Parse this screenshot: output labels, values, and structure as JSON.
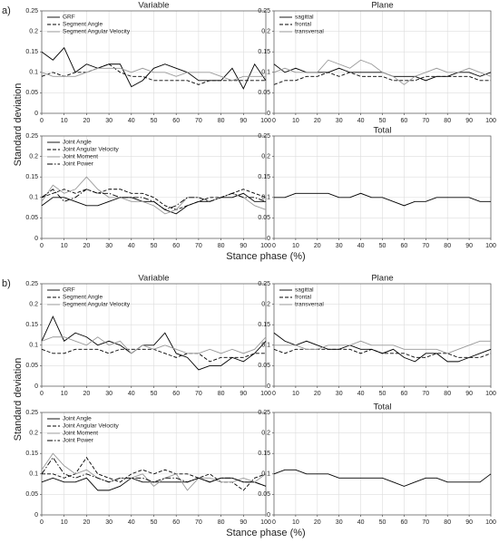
{
  "figure": {
    "panels": [
      {
        "label": "a)",
        "ylabel": "Standard deviation",
        "xlabel": "Stance phase (%)"
      },
      {
        "label": "b)",
        "ylabel": "Standard deviation",
        "xlabel": "Stance phase (%)"
      }
    ]
  },
  "chart_data": [
    {
      "type": "line",
      "title": "Variable",
      "legend": "upper left",
      "grid": true,
      "x": [
        0,
        5,
        10,
        15,
        20,
        25,
        30,
        35,
        40,
        45,
        50,
        55,
        60,
        65,
        70,
        75,
        80,
        85,
        90,
        95,
        100
      ],
      "xlim": [
        0,
        100
      ],
      "xticks": [
        0,
        10,
        20,
        30,
        40,
        50,
        60,
        70,
        80,
        90,
        100
      ],
      "ylim": [
        0,
        0.25
      ],
      "yticks": [
        0,
        0.05,
        0.1,
        0.15,
        0.2,
        0.25
      ],
      "series": [
        {
          "name": "GRF",
          "color": "#000000",
          "dash": "solid",
          "values": [
            0.15,
            0.13,
            0.16,
            0.1,
            0.12,
            0.11,
            0.12,
            0.12,
            0.065,
            0.08,
            0.11,
            0.12,
            0.11,
            0.1,
            0.08,
            0.08,
            0.08,
            0.11,
            0.06,
            0.12,
            0.08
          ]
        },
        {
          "name": "Segment Angle",
          "color": "#000000",
          "dash": "dashed",
          "values": [
            0.09,
            0.1,
            0.09,
            0.1,
            0.1,
            0.11,
            0.12,
            0.1,
            0.09,
            0.09,
            0.08,
            0.08,
            0.08,
            0.08,
            0.07,
            0.08,
            0.08,
            0.08,
            0.08,
            0.08,
            0.08
          ]
        },
        {
          "name": "Segment Angular Velocity",
          "color": "#999999",
          "dash": "solid",
          "values": [
            0.1,
            0.09,
            0.09,
            0.09,
            0.1,
            0.11,
            0.11,
            0.11,
            0.1,
            0.11,
            0.1,
            0.1,
            0.09,
            0.1,
            0.1,
            0.1,
            0.09,
            0.08,
            0.09,
            0.09,
            0.09
          ]
        }
      ]
    },
    {
      "type": "line",
      "title": "Plane",
      "legend": "upper left",
      "grid": true,
      "x": [
        0,
        5,
        10,
        15,
        20,
        25,
        30,
        35,
        40,
        45,
        50,
        55,
        60,
        65,
        70,
        75,
        80,
        85,
        90,
        95,
        100
      ],
      "xlim": [
        0,
        100
      ],
      "xticks": [
        0,
        10,
        20,
        30,
        40,
        50,
        60,
        70,
        80,
        90,
        100
      ],
      "ylim": [
        0,
        0.25
      ],
      "yticks": [
        0,
        0.05,
        0.1,
        0.15,
        0.2,
        0.25
      ],
      "series": [
        {
          "name": "sagittal",
          "color": "#000000",
          "dash": "solid",
          "values": [
            0.12,
            0.1,
            0.11,
            0.1,
            0.1,
            0.1,
            0.11,
            0.1,
            0.1,
            0.1,
            0.1,
            0.09,
            0.09,
            0.09,
            0.08,
            0.09,
            0.09,
            0.1,
            0.1,
            0.09,
            0.1
          ]
        },
        {
          "name": "frontal",
          "color": "#000000",
          "dash": "dashed",
          "values": [
            0.07,
            0.08,
            0.08,
            0.09,
            0.09,
            0.1,
            0.09,
            0.1,
            0.09,
            0.09,
            0.09,
            0.08,
            0.08,
            0.08,
            0.09,
            0.09,
            0.09,
            0.09,
            0.09,
            0.08,
            0.08
          ]
        },
        {
          "name": "transversal",
          "color": "#999999",
          "dash": "solid",
          "values": [
            0.1,
            0.11,
            0.1,
            0.1,
            0.1,
            0.13,
            0.12,
            0.11,
            0.13,
            0.12,
            0.1,
            0.09,
            0.07,
            0.09,
            0.1,
            0.11,
            0.1,
            0.1,
            0.11,
            0.1,
            0.09
          ]
        }
      ]
    },
    {
      "type": "line",
      "legend": "upper left",
      "grid": true,
      "x": [
        0,
        5,
        10,
        15,
        20,
        25,
        30,
        35,
        40,
        45,
        50,
        55,
        60,
        65,
        70,
        75,
        80,
        85,
        90,
        95,
        100
      ],
      "xlim": [
        0,
        100
      ],
      "xticks": [
        0,
        10,
        20,
        30,
        40,
        50,
        60,
        70,
        80,
        90,
        100
      ],
      "ylim": [
        0,
        0.25
      ],
      "yticks": [
        0,
        0.05,
        0.1,
        0.15,
        0.2,
        0.25
      ],
      "series": [
        {
          "name": "Joint Angle",
          "color": "#000000",
          "dash": "solid",
          "values": [
            0.08,
            0.1,
            0.1,
            0.09,
            0.08,
            0.08,
            0.09,
            0.1,
            0.1,
            0.09,
            0.09,
            0.07,
            0.06,
            0.08,
            0.09,
            0.09,
            0.1,
            0.1,
            0.11,
            0.09,
            0.09
          ]
        },
        {
          "name": "Joint Angular Velocity",
          "color": "#000000",
          "dash": "dashed",
          "values": [
            0.1,
            0.11,
            0.12,
            0.11,
            0.12,
            0.11,
            0.12,
            0.12,
            0.11,
            0.11,
            0.1,
            0.08,
            0.07,
            0.08,
            0.09,
            0.1,
            0.1,
            0.11,
            0.12,
            0.11,
            0.1
          ]
        },
        {
          "name": "Joint Moment",
          "color": "#999999",
          "dash": "solid",
          "values": [
            0.09,
            0.13,
            0.11,
            0.12,
            0.15,
            0.12,
            0.1,
            0.1,
            0.09,
            0.09,
            0.08,
            0.06,
            0.07,
            0.1,
            0.1,
            0.09,
            0.1,
            0.11,
            0.1,
            0.08,
            0.07
          ]
        },
        {
          "name": "Joint Power",
          "color": "#000000",
          "dash": "dashdot",
          "values": [
            0.1,
            0.12,
            0.09,
            0.1,
            0.12,
            0.11,
            0.11,
            0.1,
            0.1,
            0.1,
            0.09,
            0.07,
            0.08,
            0.1,
            0.1,
            0.09,
            0.1,
            0.11,
            0.1,
            0.1,
            0.09
          ]
        }
      ]
    },
    {
      "type": "line",
      "title": "Total",
      "grid": true,
      "x": [
        0,
        5,
        10,
        15,
        20,
        25,
        30,
        35,
        40,
        45,
        50,
        55,
        60,
        65,
        70,
        75,
        80,
        85,
        90,
        95,
        100
      ],
      "xlim": [
        0,
        100
      ],
      "xticks": [
        0,
        10,
        20,
        30,
        40,
        50,
        60,
        70,
        80,
        90,
        100
      ],
      "ylim": [
        0,
        0.25
      ],
      "yticks": [
        0,
        0.05,
        0.1,
        0.15,
        0.2,
        0.25
      ],
      "series": [
        {
          "color": "#000000",
          "dash": "solid",
          "values": [
            0.1,
            0.1,
            0.11,
            0.11,
            0.11,
            0.11,
            0.1,
            0.1,
            0.11,
            0.1,
            0.1,
            0.09,
            0.08,
            0.09,
            0.09,
            0.1,
            0.1,
            0.1,
            0.1,
            0.09,
            0.09
          ]
        }
      ]
    },
    {
      "type": "line",
      "title": "Variable",
      "legend": "upper left",
      "grid": true,
      "x": [
        0,
        5,
        10,
        15,
        20,
        25,
        30,
        35,
        40,
        45,
        50,
        55,
        60,
        65,
        70,
        75,
        80,
        85,
        90,
        95,
        100
      ],
      "xlim": [
        0,
        100
      ],
      "xticks": [
        0,
        10,
        20,
        30,
        40,
        50,
        60,
        70,
        80,
        90,
        100
      ],
      "ylim": [
        0,
        0.25
      ],
      "yticks": [
        0,
        0.05,
        0.1,
        0.15,
        0.2,
        0.25
      ],
      "series": [
        {
          "name": "GRF",
          "color": "#000000",
          "dash": "solid",
          "values": [
            0.11,
            0.17,
            0.11,
            0.13,
            0.12,
            0.1,
            0.11,
            0.1,
            0.08,
            0.1,
            0.1,
            0.13,
            0.08,
            0.07,
            0.04,
            0.05,
            0.05,
            0.07,
            0.06,
            0.08,
            0.11
          ]
        },
        {
          "name": "Segment Angle",
          "color": "#000000",
          "dash": "dashed",
          "values": [
            0.09,
            0.08,
            0.08,
            0.09,
            0.09,
            0.09,
            0.08,
            0.09,
            0.09,
            0.09,
            0.09,
            0.08,
            0.07,
            0.08,
            0.08,
            0.06,
            0.07,
            0.07,
            0.07,
            0.08,
            0.08
          ]
        },
        {
          "name": "Segment Angular Velocity",
          "color": "#999999",
          "dash": "solid",
          "values": [
            0.11,
            0.12,
            0.12,
            0.11,
            0.1,
            0.12,
            0.1,
            0.11,
            0.08,
            0.1,
            0.09,
            0.1,
            0.09,
            0.08,
            0.08,
            0.09,
            0.08,
            0.09,
            0.08,
            0.09,
            0.12
          ]
        }
      ]
    },
    {
      "type": "line",
      "title": "Plane",
      "legend": "upper left",
      "grid": true,
      "x": [
        0,
        5,
        10,
        15,
        20,
        25,
        30,
        35,
        40,
        45,
        50,
        55,
        60,
        65,
        70,
        75,
        80,
        85,
        90,
        95,
        100
      ],
      "xlim": [
        0,
        100
      ],
      "xticks": [
        0,
        10,
        20,
        30,
        40,
        50,
        60,
        70,
        80,
        90,
        100
      ],
      "ylim": [
        0,
        0.25
      ],
      "yticks": [
        0,
        0.05,
        0.1,
        0.15,
        0.2,
        0.25
      ],
      "series": [
        {
          "name": "sagittal",
          "color": "#000000",
          "dash": "solid",
          "values": [
            0.13,
            0.11,
            0.1,
            0.11,
            0.1,
            0.09,
            0.09,
            0.1,
            0.09,
            0.09,
            0.08,
            0.09,
            0.07,
            0.06,
            0.08,
            0.08,
            0.06,
            0.06,
            0.07,
            0.08,
            0.09
          ]
        },
        {
          "name": "frontal",
          "color": "#000000",
          "dash": "dashed",
          "values": [
            0.09,
            0.08,
            0.09,
            0.09,
            0.09,
            0.09,
            0.09,
            0.09,
            0.08,
            0.09,
            0.08,
            0.08,
            0.08,
            0.07,
            0.07,
            0.08,
            0.08,
            0.07,
            0.07,
            0.07,
            0.08
          ]
        },
        {
          "name": "transversal",
          "color": "#999999",
          "dash": "solid",
          "values": [
            0.1,
            0.1,
            0.1,
            0.09,
            0.09,
            0.1,
            0.1,
            0.1,
            0.11,
            0.1,
            0.1,
            0.1,
            0.09,
            0.09,
            0.09,
            0.09,
            0.08,
            0.09,
            0.1,
            0.11,
            0.11
          ]
        }
      ]
    },
    {
      "type": "line",
      "legend": "upper left",
      "grid": true,
      "x": [
        0,
        5,
        10,
        15,
        20,
        25,
        30,
        35,
        40,
        45,
        50,
        55,
        60,
        65,
        70,
        75,
        80,
        85,
        90,
        95,
        100
      ],
      "xlim": [
        0,
        100
      ],
      "xticks": [
        0,
        10,
        20,
        30,
        40,
        50,
        60,
        70,
        80,
        90,
        100
      ],
      "ylim": [
        0,
        0.25
      ],
      "yticks": [
        0,
        0.05,
        0.1,
        0.15,
        0.2,
        0.25
      ],
      "series": [
        {
          "name": "Joint Angle",
          "color": "#000000",
          "dash": "solid",
          "values": [
            0.08,
            0.09,
            0.08,
            0.08,
            0.09,
            0.06,
            0.06,
            0.07,
            0.09,
            0.08,
            0.08,
            0.08,
            0.08,
            0.08,
            0.09,
            0.08,
            0.09,
            0.09,
            0.08,
            0.08,
            0.07
          ]
        },
        {
          "name": "Joint Angular Velocity",
          "color": "#000000",
          "dash": "dashed",
          "values": [
            0.1,
            0.1,
            0.09,
            0.1,
            0.14,
            0.1,
            0.09,
            0.08,
            0.1,
            0.11,
            0.1,
            0.11,
            0.1,
            0.1,
            0.09,
            0.1,
            0.08,
            0.08,
            0.06,
            0.09,
            0.1
          ]
        },
        {
          "name": "Joint Moment",
          "color": "#999999",
          "dash": "solid",
          "values": [
            0.11,
            0.15,
            0.12,
            0.1,
            0.11,
            0.09,
            0.08,
            0.09,
            0.09,
            0.1,
            0.07,
            0.09,
            0.1,
            0.06,
            0.09,
            0.09,
            0.08,
            0.08,
            0.09,
            0.08,
            0.1
          ]
        },
        {
          "name": "Joint Power",
          "color": "#000000",
          "dash": "dashdot",
          "values": [
            0.1,
            0.14,
            0.1,
            0.09,
            0.1,
            0.09,
            0.08,
            0.09,
            0.09,
            0.09,
            0.08,
            0.09,
            0.09,
            0.08,
            0.09,
            0.08,
            0.09,
            0.09,
            0.08,
            0.08,
            0.07
          ]
        }
      ]
    },
    {
      "type": "line",
      "title": "Total",
      "grid": true,
      "x": [
        0,
        5,
        10,
        15,
        20,
        25,
        30,
        35,
        40,
        45,
        50,
        55,
        60,
        65,
        70,
        75,
        80,
        85,
        90,
        95,
        100
      ],
      "xlim": [
        0,
        100
      ],
      "xticks": [
        0,
        10,
        20,
        30,
        40,
        50,
        60,
        70,
        80,
        90,
        100
      ],
      "ylim": [
        0,
        0.25
      ],
      "yticks": [
        0,
        0.05,
        0.1,
        0.15,
        0.2,
        0.25
      ],
      "series": [
        {
          "color": "#000000",
          "dash": "solid",
          "values": [
            0.1,
            0.11,
            0.11,
            0.1,
            0.1,
            0.1,
            0.09,
            0.09,
            0.09,
            0.09,
            0.09,
            0.08,
            0.07,
            0.08,
            0.09,
            0.09,
            0.08,
            0.08,
            0.08,
            0.08,
            0.1
          ]
        }
      ]
    }
  ]
}
